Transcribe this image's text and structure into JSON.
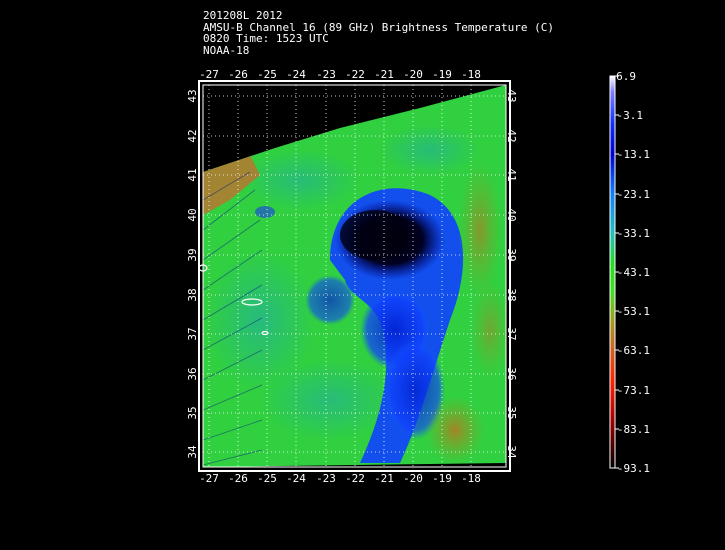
{
  "header": {
    "line1": "201208L 2012",
    "line2": "AMSU-B Channel 16 (89 GHz) Brightness Temperature (C)",
    "line3": "0820 Time: 1523 UTC",
    "line4": "NOAA-18"
  },
  "map": {
    "longitude_labels": [
      "-27",
      "-26",
      "-25",
      "-24",
      "-23",
      "-22",
      "-21",
      "-20",
      "-19",
      "-18"
    ],
    "latitude_labels": [
      "43",
      "42",
      "41",
      "40",
      "39",
      "38",
      "37",
      "36",
      "35",
      "34"
    ]
  },
  "colorbar": {
    "labels": [
      "6.9",
      "-3.1",
      "-13.1",
      "-23.1",
      "-33.1",
      "-43.1",
      "-53.1",
      "-63.1",
      "-73.1",
      "-83.1",
      "-93.1"
    ],
    "colors": [
      "#ffffff",
      "#1040ff",
      "#0000e0",
      "#1090ff",
      "#20d0a0",
      "#20e020",
      "#80b020",
      "#d07020",
      "#ff2000",
      "#a00000",
      "#000000"
    ]
  }
}
